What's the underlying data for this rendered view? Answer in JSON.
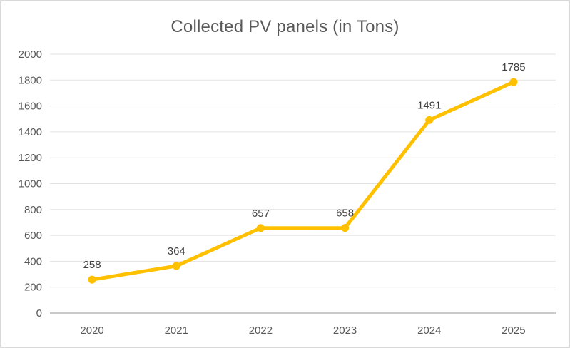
{
  "chart_data": {
    "type": "line",
    "title": "Collected PV panels (in Tons)",
    "categories": [
      "2020",
      "2021",
      "2022",
      "2023",
      "2024",
      "2025"
    ],
    "values": [
      258,
      364,
      657,
      658,
      1491,
      1785
    ],
    "data_labels": [
      "258",
      "364",
      "657",
      "658",
      "1491",
      "1785"
    ],
    "xlabel": "",
    "ylabel": "",
    "ylim": [
      0,
      2000
    ],
    "y_tick_step": 200,
    "y_ticks": [
      0,
      200,
      400,
      600,
      800,
      1000,
      1200,
      1400,
      1600,
      1800,
      2000
    ],
    "grid": true,
    "legend_position": "none",
    "colors": {
      "line": "#FFC000",
      "marker": "#FFC000",
      "data_label": "#404040",
      "axis_text": "#595959",
      "gridline": "#E2E2E2",
      "axis_line": "#C9C9C9",
      "title": "#595959",
      "border": "#D9D9D9",
      "background": "#FFFFFF"
    }
  }
}
